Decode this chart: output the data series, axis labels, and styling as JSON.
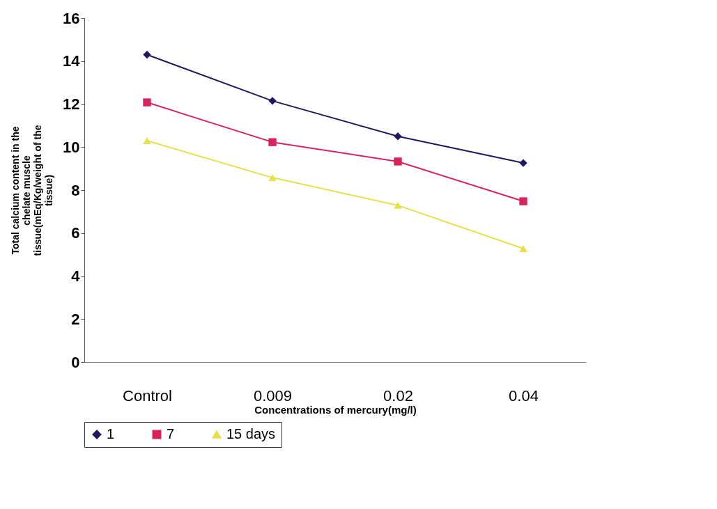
{
  "chart_data": {
    "type": "line",
    "categories": [
      "Control",
      "0.009",
      "0.02",
      "0.04"
    ],
    "xlabel": "Concentrations of mercury(mg/l)",
    "ylabel": "Total calcium content in the chelate muscle tissue(mEq/Kg/weight of the tissue)",
    "ylim": [
      0,
      16
    ],
    "yticks": [
      0,
      2,
      4,
      6,
      8,
      10,
      12,
      14,
      16
    ],
    "grid": false,
    "legend": "bottom",
    "series": [
      {
        "name": "1",
        "color": "#1f1a5e",
        "marker": "diamond",
        "values": [
          14.3,
          12.15,
          10.5,
          9.26
        ]
      },
      {
        "name": "7",
        "color": "#d8245a",
        "marker": "square",
        "values": [
          12.08,
          10.23,
          9.33,
          7.48
        ]
      },
      {
        "name": "15 days",
        "color": "#e6e04a",
        "marker": "triangle",
        "values": [
          10.3,
          8.58,
          7.29,
          5.28
        ]
      }
    ]
  }
}
